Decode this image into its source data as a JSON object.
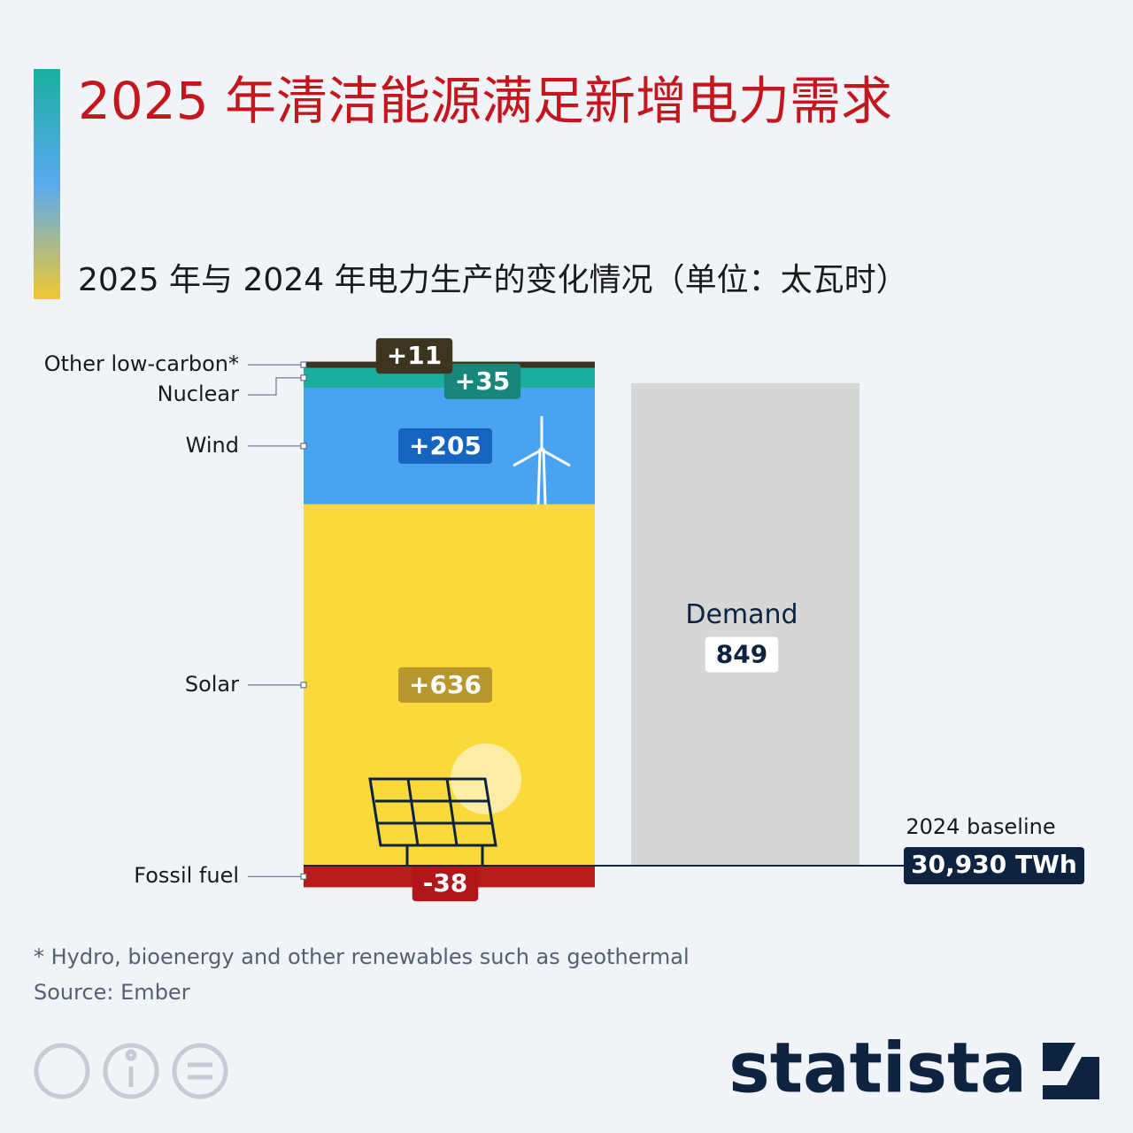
{
  "title": "2025 年清洁能源满足新增电力需求",
  "subtitle": "2025 年与 2024 年电力生产的变化情况（单位：太瓦时）",
  "chart_data": {
    "type": "bar",
    "stacked": true,
    "series": [
      {
        "name": "Fossil fuel",
        "color": "#b71c1c",
        "label_color": "#b0161a",
        "values": [
          -38
        ],
        "value_labels": [
          "-38"
        ]
      },
      {
        "name": "Solar",
        "color": "#fbd93a",
        "label_color": "#b8982e",
        "values": [
          636
        ],
        "value_labels": [
          "+636"
        ]
      },
      {
        "name": "Wind",
        "color": "#4aa3f0",
        "label_color": "#1565c0",
        "values": [
          205
        ],
        "value_labels": [
          "+205"
        ]
      },
      {
        "name": "Nuclear",
        "color": "#1aae9f",
        "label_color": "#16877a",
        "values": [
          35
        ],
        "value_labels": [
          "+35"
        ]
      },
      {
        "name": "Other low-carbon*",
        "color": "#3d3520",
        "label_color": "#3d3520",
        "values": [
          11
        ],
        "value_labels": [
          "+11"
        ]
      }
    ],
    "demand": {
      "name": "Demand",
      "value": 849,
      "color": "#d6d6d6"
    },
    "baseline": {
      "label": "2024 baseline",
      "value_label": "30,930 TWh"
    }
  },
  "footnote": "* Hydro, bioenergy and other renewables such as geothermal",
  "source": "Source: Ember",
  "brand": "statista"
}
